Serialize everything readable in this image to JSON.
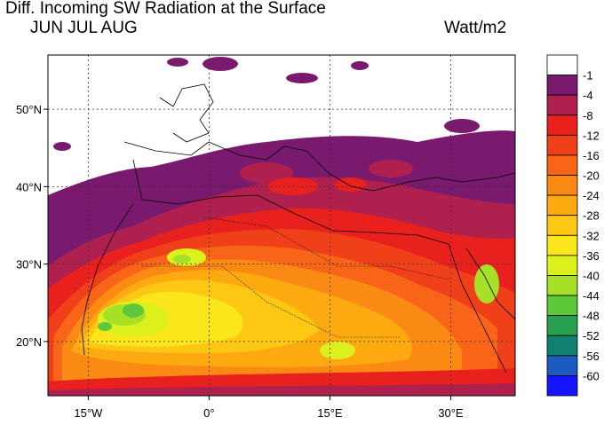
{
  "header": {
    "title": "Diff. Incoming SW Radiation at the Surface",
    "season": "JUN JUL AUG",
    "units": "Watt/m2"
  },
  "map": {
    "lon_range": [
      -20,
      38
    ],
    "lat_range": [
      13,
      57
    ],
    "lat_ticks": [
      {
        "value": 50,
        "label": "50°N"
      },
      {
        "value": 40,
        "label": "40°N"
      },
      {
        "value": 30,
        "label": "30°N"
      },
      {
        "value": 20,
        "label": "20°N"
      }
    ],
    "lon_ticks": [
      {
        "value": -15,
        "label": "15°W"
      },
      {
        "value": 0,
        "label": "0°"
      },
      {
        "value": 15,
        "label": "15°E"
      },
      {
        "value": 30,
        "label": "30°E"
      }
    ],
    "gridlines": "dotted"
  },
  "colorbar": {
    "labels": [
      "-1",
      "-4",
      "-8",
      "-12",
      "-16",
      "-20",
      "-24",
      "-28",
      "-32",
      "-36",
      "-40",
      "-44",
      "-48",
      "-52",
      "-56",
      "-60"
    ],
    "colors": [
      "#ffffff",
      "#7a1a6e",
      "#b0204e",
      "#e8201e",
      "#f0401a",
      "#f86418",
      "#fa8a14",
      "#fcaa10",
      "#fcc814",
      "#fae61a",
      "#dcf01e",
      "#a6e028",
      "#5cc83a",
      "#28a050",
      "#128070",
      "#1c5cc0",
      "#1414ff"
    ]
  }
}
